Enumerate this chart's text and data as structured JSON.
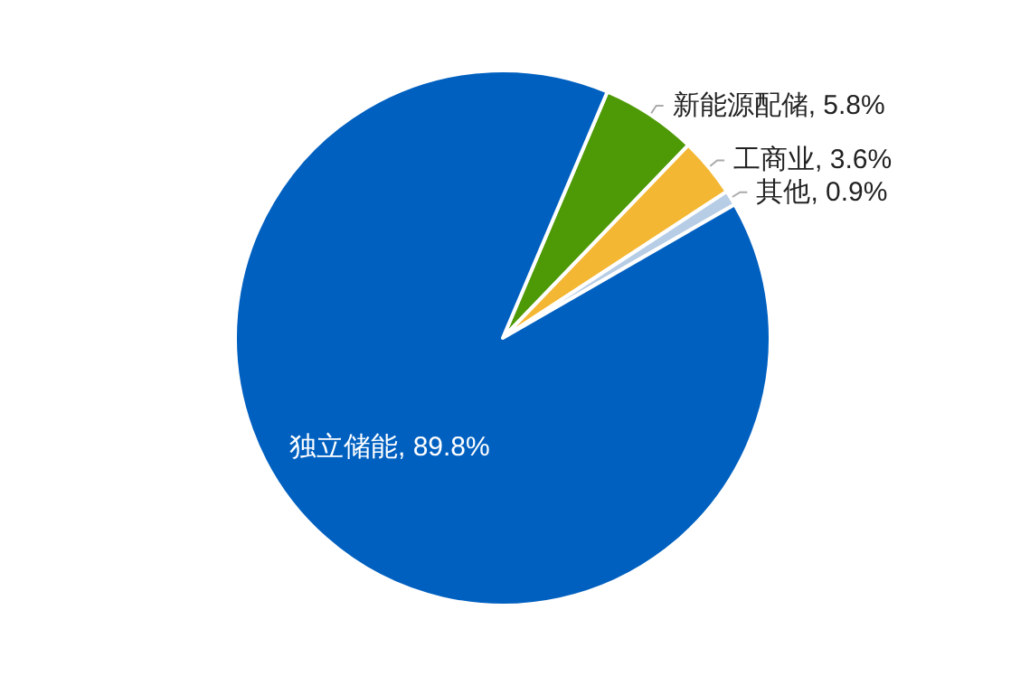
{
  "chart_data": {
    "type": "pie",
    "categories": [
      "新能源配储",
      "工商业",
      "其他",
      "独立储能"
    ],
    "values": [
      5.8,
      3.6,
      0.9,
      89.8
    ],
    "value_labels": [
      "5.8%",
      "3.6%",
      "0.9%",
      "89.8%"
    ],
    "colors": [
      "#4e9a06",
      "#f4b733",
      "#b7cde6",
      "#0060c0"
    ],
    "legend": false
  }
}
